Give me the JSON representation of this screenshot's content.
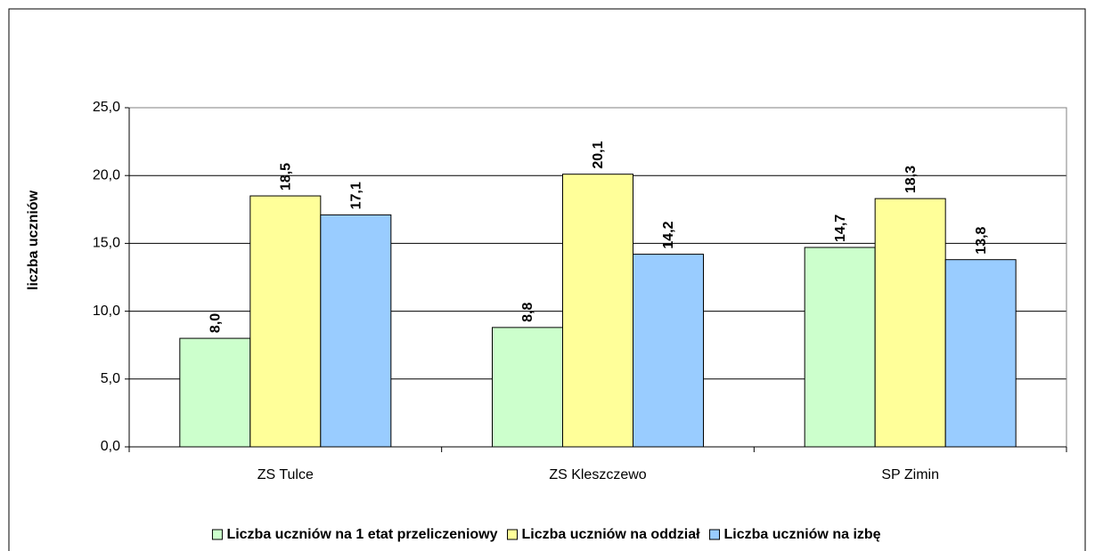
{
  "chart_data": {
    "type": "bar",
    "y_axis_label": "liczba uczniów",
    "categories": [
      "ZS Tulce",
      "ZS Kleszczewo",
      "SP Zimin"
    ],
    "series": [
      {
        "name": "Liczba uczniów na 1 etat przeliczeniowy",
        "color": "#ccffcc",
        "values": [
          8.0,
          8.8,
          14.7
        ],
        "value_labels": [
          "8,0",
          "8,8",
          "14,7"
        ]
      },
      {
        "name": "Liczba uczniów na oddział",
        "color": "#ffff99",
        "values": [
          18.5,
          20.1,
          18.3
        ],
        "value_labels": [
          "18,5",
          "20,1",
          "18,3"
        ]
      },
      {
        "name": "Liczba uczniów na izbę",
        "color": "#99ccff",
        "values": [
          17.1,
          14.2,
          13.8
        ],
        "value_labels": [
          "17,1",
          "14,2",
          "13,8"
        ]
      }
    ],
    "ylim": [
      0,
      25
    ],
    "yticks": [
      {
        "value": 0,
        "label": "0,0"
      },
      {
        "value": 5,
        "label": "5,0"
      },
      {
        "value": 10,
        "label": "10,0"
      },
      {
        "value": 15,
        "label": "15,0"
      },
      {
        "value": 20,
        "label": "20,0"
      },
      {
        "value": 25,
        "label": "25,0"
      }
    ],
    "grid": true,
    "legend": "bottom"
  }
}
